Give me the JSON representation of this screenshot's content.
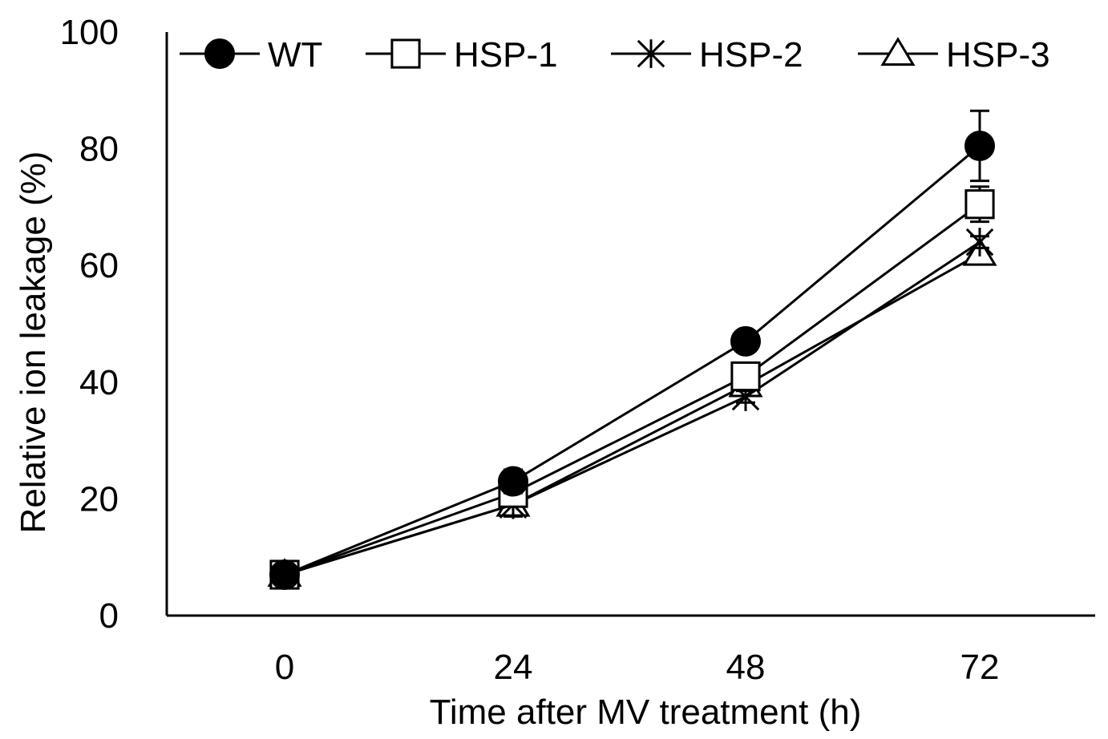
{
  "chart_data": {
    "type": "line",
    "title": "",
    "xlabel": "Time after MV treatment (h)",
    "ylabel": "Relative ion leakage (%)",
    "categories": [
      "0",
      "24",
      "48",
      "72"
    ],
    "ylim": [
      0,
      100
    ],
    "yticks": [
      "0",
      "20",
      "40",
      "60",
      "80",
      "100"
    ],
    "grid": false,
    "legend_position": "top",
    "series": [
      {
        "name": "WT",
        "marker": "filled-circle",
        "values": [
          7,
          23,
          47,
          80.5
        ],
        "errors": [
          1,
          2,
          1,
          6
        ]
      },
      {
        "name": "HSP-1",
        "marker": "open-square",
        "values": [
          7,
          21,
          41,
          70.5
        ],
        "errors": [
          1,
          2,
          1,
          3
        ]
      },
      {
        "name": "HSP-2",
        "marker": "asterisk",
        "values": [
          7,
          19,
          37.5,
          64
        ],
        "errors": [
          1,
          2,
          1,
          1
        ]
      },
      {
        "name": "HSP-3",
        "marker": "open-triangle",
        "values": [
          7,
          19,
          39.5,
          62
        ],
        "errors": [
          1,
          2,
          1,
          1
        ]
      }
    ]
  }
}
